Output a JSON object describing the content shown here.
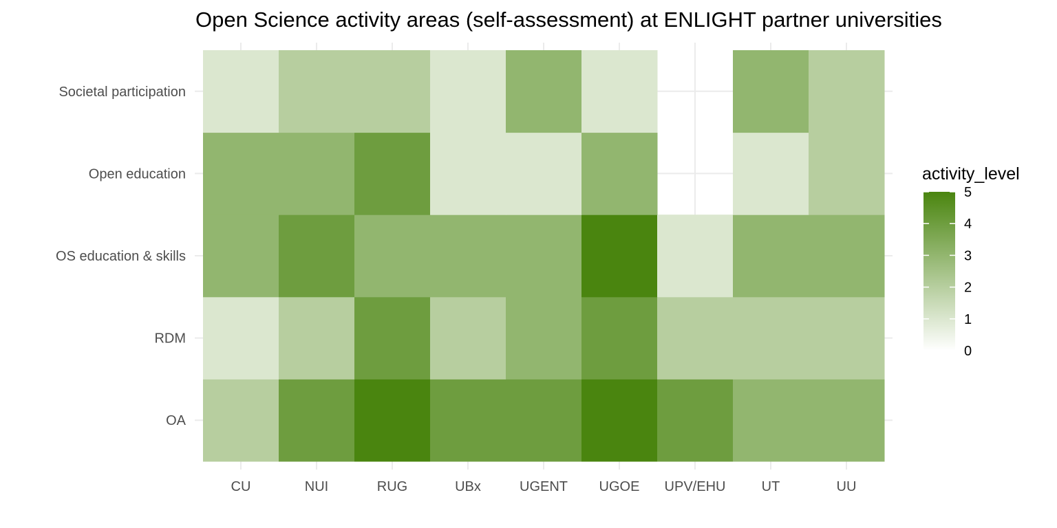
{
  "chart_data": {
    "type": "heatmap",
    "title": "Open Science activity areas (self-assessment) at ENLIGHT partner universities",
    "xlabel": "",
    "ylabel": "",
    "x_categories": [
      "CU",
      "NUI",
      "RUG",
      "UBx",
      "UGENT",
      "UGOE",
      "UPV/EHU",
      "UT",
      "UU"
    ],
    "y_categories": [
      "OA",
      "RDM",
      "OS education & skills",
      "Open education",
      "Societal participation"
    ],
    "values": [
      [
        2,
        4,
        5,
        4,
        4,
        5,
        4,
        3,
        3
      ],
      [
        1,
        2,
        4,
        2,
        3,
        4,
        2,
        2,
        2
      ],
      [
        3,
        4,
        3,
        3,
        3,
        5,
        1,
        3,
        3
      ],
      [
        3,
        3,
        4,
        1,
        1,
        3,
        null,
        1,
        2
      ],
      [
        1,
        2,
        2,
        1,
        3,
        1,
        null,
        3,
        2
      ]
    ],
    "legend": {
      "title": "activity_level",
      "position": "right",
      "min": 0,
      "max": 5,
      "ticks": [
        0,
        1,
        2,
        3,
        4,
        5
      ],
      "low_color": "#ffffff",
      "high_color": "#4a850f"
    },
    "grid": true
  }
}
